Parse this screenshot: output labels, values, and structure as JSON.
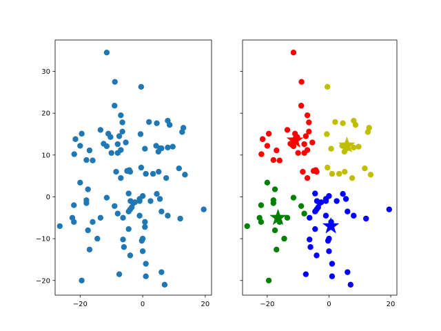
{
  "chart_data": [
    {
      "type": "scatter",
      "title": "",
      "xlabel": "",
      "ylabel": "",
      "xlim": [
        -28,
        22
      ],
      "ylim": [
        -23.5,
        37.5
      ],
      "xticks": [
        -20,
        0,
        20
      ],
      "yticks": [
        -20,
        -10,
        0,
        10,
        20,
        30
      ],
      "xtick_labels": [
        "−20",
        "0",
        "20"
      ],
      "ytick_labels": [
        "−20",
        "−10",
        "0",
        "10",
        "20",
        "30"
      ],
      "grid": false,
      "series": [
        {
          "color": "#1f77b4",
          "points": [
            [
              -11.5,
              34.5
            ],
            [
              -8.9,
              27.5
            ],
            [
              -0.5,
              26.3
            ],
            [
              -9.0,
              21.8
            ],
            [
              -7.0,
              19.5
            ],
            [
              -6.5,
              17.8
            ],
            [
              2.0,
              17.9
            ],
            [
              4.5,
              17.6
            ],
            [
              8.0,
              18.2
            ],
            [
              8.6,
              17.2
            ],
            [
              13.0,
              16.5
            ],
            [
              12.6,
              15.5
            ],
            [
              -13.5,
              16.0
            ],
            [
              -19.5,
              15.1
            ],
            [
              -11.0,
              15.1
            ],
            [
              -6.5,
              15.6
            ],
            [
              -7.5,
              14.5
            ],
            [
              -0.7,
              15.0
            ],
            [
              -21.5,
              13.8
            ],
            [
              -10.3,
              14.3
            ],
            [
              -12.5,
              12.7
            ],
            [
              -11.5,
              12.1
            ],
            [
              -20.0,
              12.2
            ],
            [
              -8.0,
              12.6
            ],
            [
              -5.4,
              13.0
            ],
            [
              -17.0,
              11.1
            ],
            [
              -7.0,
              11.2
            ],
            [
              -10.0,
              10.5
            ],
            [
              -8.0,
              10.5
            ],
            [
              0.7,
              11.5
            ],
            [
              4.3,
              12.2
            ],
            [
              5.0,
              10.8
            ],
            [
              5.6,
              11.6
            ],
            [
              6.0,
              11.6
            ],
            [
              8.0,
              11.8
            ],
            [
              9.6,
              12.0
            ],
            [
              -21.9,
              10.2
            ],
            [
              -18.0,
              8.8
            ],
            [
              -16.0,
              8.7
            ],
            [
              -8.5,
              6.0
            ],
            [
              -5.0,
              6.2
            ],
            [
              -4.3,
              6.4
            ],
            [
              -4.0,
              6.0
            ],
            [
              -0.5,
              7.0
            ],
            [
              1.0,
              5.5
            ],
            [
              3.3,
              5.5
            ],
            [
              5.1,
              6.0
            ],
            [
              7.5,
              4.5
            ],
            [
              11.6,
              6.8
            ],
            [
              13.5,
              5.3
            ],
            [
              -20.0,
              3.4
            ],
            [
              -17.5,
              1.8
            ],
            [
              -7.0,
              4.5
            ],
            [
              -11.5,
              -0.2
            ],
            [
              -4.5,
              0.8
            ],
            [
              -1.0,
              -0.5
            ],
            [
              0.0,
              0.2
            ],
            [
              4.5,
              0.7
            ],
            [
              2.5,
              -1.0
            ],
            [
              5.5,
              -0.5
            ],
            [
              -3.9,
              -1.0
            ],
            [
              -3.0,
              -1.5
            ],
            [
              -2.5,
              -1.3
            ],
            [
              -1.0,
              -1.0
            ],
            [
              -18.0,
              -0.8
            ],
            [
              -18.0,
              -1.5
            ],
            [
              -22.0,
              -2.0
            ],
            [
              -9.0,
              -2.2
            ],
            [
              -4.5,
              -3.5
            ],
            [
              -4.0,
              -3.0
            ],
            [
              -3.5,
              -2.5
            ],
            [
              6.0,
              -3.5
            ],
            [
              -22.5,
              -5.0
            ],
            [
              -13.5,
              -5.0
            ],
            [
              -8.0,
              -4.0
            ],
            [
              -6.3,
              -5.0
            ],
            [
              -1.0,
              -4.5
            ],
            [
              12.0,
              -5.2
            ],
            [
              8.0,
              -4.5
            ],
            [
              -22.0,
              -6.0
            ],
            [
              -26.5,
              -7.0
            ],
            [
              -16.0,
              -6.0
            ],
            [
              -17.5,
              -8.0
            ],
            [
              -4.5,
              -7.7
            ],
            [
              0.7,
              -6.0
            ],
            [
              0.7,
              -7.2
            ],
            [
              -6.3,
              -10.2
            ],
            [
              0.0,
              -10.0
            ],
            [
              -0.3,
              -10.5
            ],
            [
              -14.5,
              -10.0
            ],
            [
              -17.0,
              -12.6
            ],
            [
              -6.0,
              -12.0
            ],
            [
              0.0,
              -13.0
            ],
            [
              -4.0,
              -14.0
            ],
            [
              1.0,
              -16.0
            ],
            [
              -7.5,
              -18.5
            ],
            [
              6.0,
              -18.0
            ],
            [
              1.0,
              -19.0
            ],
            [
              -19.5,
              -20.0
            ],
            [
              7.0,
              -21.0
            ],
            [
              19.5,
              -3.0
            ]
          ]
        }
      ]
    },
    {
      "type": "scatter",
      "title": "",
      "xlabel": "",
      "ylabel": "",
      "xlim": [
        -28,
        22
      ],
      "ylim": [
        -23.5,
        37.5
      ],
      "xticks": [
        -20,
        0,
        20
      ],
      "yticks": [
        -20,
        -10,
        0,
        10,
        20,
        30
      ],
      "xtick_labels": [
        "−20",
        "0",
        "20"
      ],
      "ytick_labels": [],
      "grid": false,
      "series": [
        {
          "color": "#ff0000",
          "points": [
            [
              -11.5,
              34.5
            ],
            [
              -8.9,
              27.5
            ],
            [
              -9.0,
              21.8
            ],
            [
              -7.0,
              19.5
            ],
            [
              -6.5,
              17.8
            ],
            [
              -13.5,
              16.0
            ],
            [
              -19.5,
              15.1
            ],
            [
              -11.0,
              15.1
            ],
            [
              -6.5,
              15.6
            ],
            [
              -7.5,
              14.5
            ],
            [
              -21.5,
              13.8
            ],
            [
              -10.3,
              14.3
            ],
            [
              -12.5,
              12.7
            ],
            [
              -11.5,
              12.1
            ],
            [
              -20.0,
              12.2
            ],
            [
              -8.0,
              12.6
            ],
            [
              -5.4,
              13.0
            ],
            [
              -17.0,
              11.1
            ],
            [
              -7.0,
              11.2
            ],
            [
              -10.0,
              10.5
            ],
            [
              -8.0,
              10.5
            ],
            [
              -21.9,
              10.2
            ],
            [
              -18.0,
              8.8
            ],
            [
              -16.0,
              8.7
            ],
            [
              -8.5,
              6.0
            ],
            [
              -5.0,
              6.2
            ],
            [
              -4.3,
              6.4
            ],
            [
              -4.0,
              6.0
            ],
            [
              -7.0,
              4.5
            ]
          ]
        },
        {
          "color": "#bfbf00",
          "points": [
            [
              -0.5,
              26.3
            ],
            [
              2.0,
              17.9
            ],
            [
              4.5,
              17.6
            ],
            [
              8.0,
              18.2
            ],
            [
              8.6,
              17.2
            ],
            [
              13.0,
              16.5
            ],
            [
              12.6,
              15.5
            ],
            [
              -0.7,
              15.0
            ],
            [
              0.7,
              11.5
            ],
            [
              4.3,
              12.2
            ],
            [
              5.0,
              10.8
            ],
            [
              5.6,
              11.6
            ],
            [
              6.0,
              11.6
            ],
            [
              8.0,
              11.8
            ],
            [
              9.6,
              12.0
            ],
            [
              -0.5,
              7.0
            ],
            [
              1.0,
              5.5
            ],
            [
              3.3,
              5.5
            ],
            [
              5.1,
              6.0
            ],
            [
              7.5,
              4.5
            ],
            [
              11.6,
              6.8
            ],
            [
              13.5,
              5.3
            ]
          ]
        },
        {
          "color": "#008000",
          "points": [
            [
              -20.0,
              3.4
            ],
            [
              -17.5,
              1.8
            ],
            [
              -11.5,
              -0.2
            ],
            [
              -18.0,
              -0.8
            ],
            [
              -18.0,
              -1.5
            ],
            [
              -22.0,
              -2.0
            ],
            [
              -9.0,
              -2.2
            ],
            [
              -22.5,
              -5.0
            ],
            [
              -13.5,
              -5.0
            ],
            [
              -22.0,
              -6.0
            ],
            [
              -26.5,
              -7.0
            ],
            [
              -16.0,
              -6.0
            ],
            [
              -17.5,
              -8.0
            ],
            [
              -14.5,
              -10.0
            ],
            [
              -17.0,
              -12.6
            ],
            [
              -19.5,
              -20.0
            ],
            [
              -8.0,
              -4.0
            ]
          ]
        },
        {
          "color": "#0000ff",
          "points": [
            [
              -4.5,
              0.8
            ],
            [
              -1.0,
              -0.5
            ],
            [
              0.0,
              0.2
            ],
            [
              4.5,
              0.7
            ],
            [
              2.5,
              -1.0
            ],
            [
              5.5,
              -0.5
            ],
            [
              -3.9,
              -1.0
            ],
            [
              -3.0,
              -1.5
            ],
            [
              -2.5,
              -1.3
            ],
            [
              -1.0,
              -1.0
            ],
            [
              -4.5,
              -3.5
            ],
            [
              -4.0,
              -3.0
            ],
            [
              -3.5,
              -2.5
            ],
            [
              6.0,
              -3.5
            ],
            [
              -6.3,
              -5.0
            ],
            [
              -1.0,
              -4.5
            ],
            [
              12.0,
              -5.2
            ],
            [
              8.0,
              -4.5
            ],
            [
              -4.5,
              -7.7
            ],
            [
              0.7,
              -6.0
            ],
            [
              0.7,
              -7.2
            ],
            [
              -6.3,
              -10.2
            ],
            [
              0.0,
              -10.0
            ],
            [
              -0.3,
              -10.5
            ],
            [
              -6.0,
              -12.0
            ],
            [
              0.0,
              -13.0
            ],
            [
              -4.0,
              -14.0
            ],
            [
              1.0,
              -16.0
            ],
            [
              -7.5,
              -18.5
            ],
            [
              6.0,
              -18.0
            ],
            [
              1.0,
              -19.0
            ],
            [
              7.0,
              -21.0
            ],
            [
              19.5,
              -3.0
            ]
          ]
        }
      ],
      "centroids": [
        {
          "color": "#ff0000",
          "x": -11.0,
          "y": 13.5
        },
        {
          "color": "#bfbf00",
          "x": 5.8,
          "y": 12.3
        },
        {
          "color": "#008000",
          "x": -16.5,
          "y": -5.0
        },
        {
          "color": "#0000ff",
          "x": 0.6,
          "y": -7.0
        }
      ]
    }
  ]
}
